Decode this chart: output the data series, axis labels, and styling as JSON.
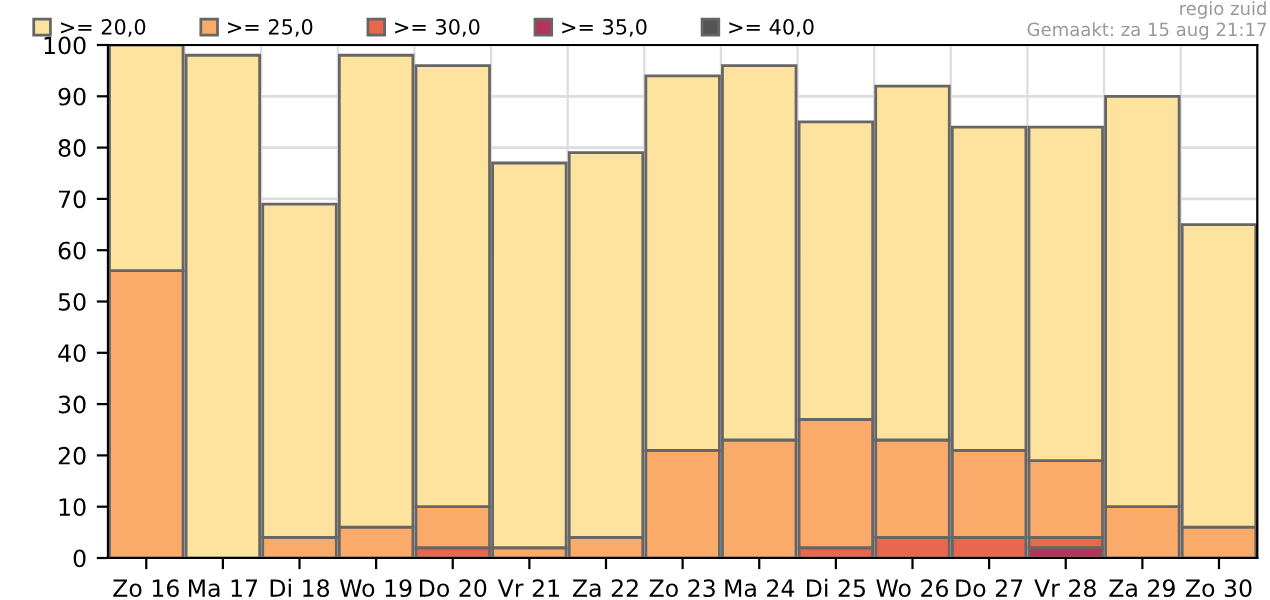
{
  "chart_data": {
    "type": "bar",
    "stacked": true,
    "categories": [
      "Zo 16",
      "Ma 17",
      "Di 18",
      "Wo 19",
      "Do 20",
      "Vr 21",
      "Za 22",
      "Zo 23",
      "Ma 24",
      "Di 25",
      "Wo 26",
      "Do 27",
      "Vr 28",
      "Za 29",
      "Zo 30"
    ],
    "series": [
      {
        "name": ">= 40,0",
        "color": "#555555",
        "values": [
          0,
          0,
          0,
          0,
          0,
          0,
          0,
          0,
          0,
          0,
          0,
          0,
          0,
          0,
          0
        ]
      },
      {
        "name": ">= 35,0",
        "color": "#b5345a",
        "values": [
          0,
          0,
          0,
          0,
          0,
          0,
          0,
          0,
          0,
          0,
          0,
          0,
          2,
          0,
          0
        ]
      },
      {
        "name": ">= 30,0",
        "color": "#e9664f",
        "values": [
          0,
          0,
          0,
          0,
          2,
          0,
          0,
          0,
          0,
          2,
          4,
          4,
          2,
          0,
          0
        ]
      },
      {
        "name": ">= 25,0",
        "color": "#fbab69",
        "values": [
          56,
          0,
          4,
          6,
          8,
          2,
          4,
          21,
          23,
          25,
          19,
          17,
          15,
          10,
          6
        ]
      },
      {
        "name": ">= 20,0",
        "color": "#fde39d",
        "values": [
          44,
          98,
          65,
          92,
          86,
          75,
          75,
          73,
          73,
          58,
          69,
          63,
          65,
          80,
          59
        ]
      }
    ],
    "ylim": [
      0,
      100
    ],
    "yticks": [
      0,
      10,
      20,
      30,
      40,
      50,
      60,
      70,
      80,
      90,
      100
    ],
    "grid": true,
    "legend": "top left",
    "annotations": [
      "regio zuid",
      "Gemaakt: za 15 aug 21:17"
    ]
  }
}
